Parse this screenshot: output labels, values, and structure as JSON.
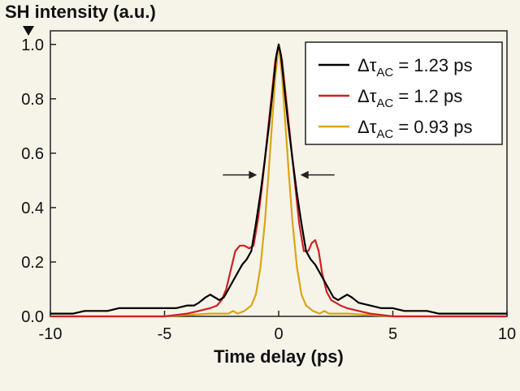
{
  "chart_data": {
    "type": "line",
    "ylabel": "SH intensity (a.u.)",
    "xlabel": "Time delay (ps)",
    "xlim": [
      -10,
      10
    ],
    "ylim": [
      0,
      1.05
    ],
    "x_ticks": [
      -10,
      -5,
      0,
      5,
      10
    ],
    "x_tick_labels": [
      "-10",
      "-5",
      "0",
      "5",
      "10"
    ],
    "y_ticks": [
      0,
      0.2,
      0.4,
      0.6,
      0.8,
      1.0
    ],
    "y_tick_labels": [
      "0.0",
      "0.2",
      "0.4",
      "0.6",
      "0.8",
      "1.0"
    ],
    "grid": false,
    "legend_position": "top-right",
    "background_color": "#f6f3e9",
    "fwhm_arrows": {
      "y": 0.52,
      "left_x": -0.95,
      "right_x": 0.95
    },
    "series": [
      {
        "legend_prefix": "Δτ",
        "legend_subscript": "AC",
        "legend_value": " = 1.23 ps",
        "color": "#000000",
        "points": [
          [
            -10,
            0.01
          ],
          [
            -9.5,
            0.01
          ],
          [
            -9,
            0.01
          ],
          [
            -8.5,
            0.02
          ],
          [
            -8,
            0.02
          ],
          [
            -7.5,
            0.02
          ],
          [
            -7,
            0.03
          ],
          [
            -6.5,
            0.03
          ],
          [
            -6,
            0.03
          ],
          [
            -5.5,
            0.03
          ],
          [
            -5,
            0.03
          ],
          [
            -4.5,
            0.03
          ],
          [
            -4,
            0.04
          ],
          [
            -3.7,
            0.04
          ],
          [
            -3.5,
            0.05
          ],
          [
            -3.2,
            0.07
          ],
          [
            -3,
            0.08
          ],
          [
            -2.8,
            0.07
          ],
          [
            -2.6,
            0.06
          ],
          [
            -2.4,
            0.07
          ],
          [
            -2.2,
            0.1
          ],
          [
            -2.0,
            0.13
          ],
          [
            -1.8,
            0.16
          ],
          [
            -1.6,
            0.19
          ],
          [
            -1.4,
            0.21
          ],
          [
            -1.2,
            0.24
          ],
          [
            -1.0,
            0.34
          ],
          [
            -0.8,
            0.45
          ],
          [
            -0.6,
            0.58
          ],
          [
            -0.4,
            0.72
          ],
          [
            -0.2,
            0.88
          ],
          [
            -0.1,
            0.96
          ],
          [
            0,
            1.0
          ],
          [
            0.1,
            0.96
          ],
          [
            0.2,
            0.88
          ],
          [
            0.4,
            0.72
          ],
          [
            0.6,
            0.58
          ],
          [
            0.8,
            0.45
          ],
          [
            1.0,
            0.34
          ],
          [
            1.2,
            0.24
          ],
          [
            1.4,
            0.21
          ],
          [
            1.6,
            0.19
          ],
          [
            1.8,
            0.16
          ],
          [
            2.0,
            0.13
          ],
          [
            2.2,
            0.1
          ],
          [
            2.4,
            0.07
          ],
          [
            2.6,
            0.06
          ],
          [
            2.8,
            0.07
          ],
          [
            3.0,
            0.08
          ],
          [
            3.2,
            0.07
          ],
          [
            3.5,
            0.05
          ],
          [
            4.0,
            0.04
          ],
          [
            4.5,
            0.03
          ],
          [
            5,
            0.03
          ],
          [
            5.5,
            0.02
          ],
          [
            6,
            0.02
          ],
          [
            6.5,
            0.02
          ],
          [
            7,
            0.01
          ],
          [
            7.5,
            0.01
          ],
          [
            8,
            0.01
          ],
          [
            8.5,
            0.01
          ],
          [
            9,
            0.01
          ],
          [
            9.5,
            0.01
          ],
          [
            10,
            0.01
          ]
        ]
      },
      {
        "legend_prefix": "Δτ",
        "legend_subscript": "AC",
        "legend_value": " = 1.2 ps",
        "color": "#cc2222",
        "points": [
          [
            -10,
            0.0
          ],
          [
            -5,
            0.0
          ],
          [
            -4,
            0.01
          ],
          [
            -3.5,
            0.02
          ],
          [
            -3,
            0.03
          ],
          [
            -2.7,
            0.04
          ],
          [
            -2.5,
            0.06
          ],
          [
            -2.3,
            0.1
          ],
          [
            -2.1,
            0.17
          ],
          [
            -1.9,
            0.24
          ],
          [
            -1.7,
            0.26
          ],
          [
            -1.5,
            0.26
          ],
          [
            -1.3,
            0.25
          ],
          [
            -1.1,
            0.26
          ],
          [
            -0.9,
            0.36
          ],
          [
            -0.7,
            0.5
          ],
          [
            -0.5,
            0.66
          ],
          [
            -0.3,
            0.82
          ],
          [
            -0.15,
            0.94
          ],
          [
            0,
            1.0
          ],
          [
            0.15,
            0.94
          ],
          [
            0.3,
            0.82
          ],
          [
            0.5,
            0.66
          ],
          [
            0.7,
            0.5
          ],
          [
            0.9,
            0.34
          ],
          [
            1.1,
            0.24
          ],
          [
            1.3,
            0.24
          ],
          [
            1.45,
            0.27
          ],
          [
            1.6,
            0.28
          ],
          [
            1.75,
            0.24
          ],
          [
            1.9,
            0.16
          ],
          [
            2.1,
            0.09
          ],
          [
            2.3,
            0.06
          ],
          [
            2.5,
            0.05
          ],
          [
            2.7,
            0.04
          ],
          [
            3.0,
            0.03
          ],
          [
            3.5,
            0.02
          ],
          [
            4,
            0.01
          ],
          [
            5,
            0.0
          ],
          [
            10,
            0.0
          ]
        ]
      },
      {
        "legend_prefix": "Δτ",
        "legend_subscript": "AC",
        "legend_value": " = 0.93 ps",
        "color": "#d9a514",
        "points": [
          [
            -10,
            0.0
          ],
          [
            -5,
            0.0
          ],
          [
            -3,
            0.01
          ],
          [
            -2.2,
            0.01
          ],
          [
            -2.0,
            0.02
          ],
          [
            -1.8,
            0.01
          ],
          [
            -1.5,
            0.02
          ],
          [
            -1.2,
            0.04
          ],
          [
            -1.0,
            0.08
          ],
          [
            -0.8,
            0.18
          ],
          [
            -0.6,
            0.35
          ],
          [
            -0.45,
            0.52
          ],
          [
            -0.3,
            0.7
          ],
          [
            -0.15,
            0.88
          ],
          [
            0,
            1.0
          ],
          [
            0.15,
            0.88
          ],
          [
            0.3,
            0.7
          ],
          [
            0.45,
            0.52
          ],
          [
            0.6,
            0.35
          ],
          [
            0.8,
            0.18
          ],
          [
            1.0,
            0.08
          ],
          [
            1.2,
            0.04
          ],
          [
            1.5,
            0.02
          ],
          [
            1.8,
            0.01
          ],
          [
            2.0,
            0.02
          ],
          [
            2.2,
            0.01
          ],
          [
            3,
            0.01
          ],
          [
            5,
            0.0
          ],
          [
            10,
            0.0
          ]
        ]
      }
    ]
  }
}
